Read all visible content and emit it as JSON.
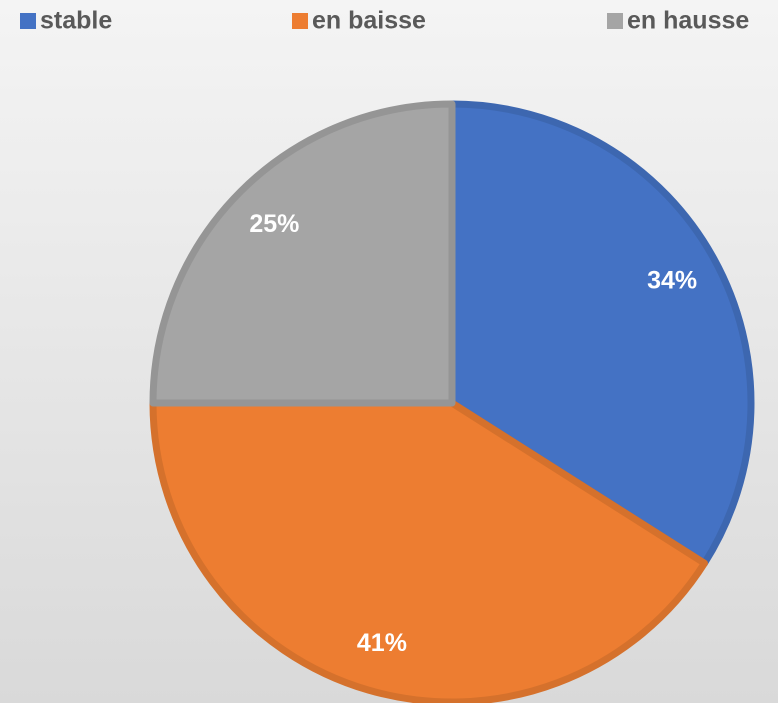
{
  "chart_data": {
    "type": "pie",
    "categories": [
      "stable",
      "en baisse",
      "en hausse"
    ],
    "values": [
      34,
      41,
      25
    ],
    "value_labels": [
      "34%",
      "41%",
      "25%"
    ],
    "colors": [
      "#4472c4",
      "#ed7d31",
      "#a5a5a5"
    ],
    "legend": "top"
  }
}
